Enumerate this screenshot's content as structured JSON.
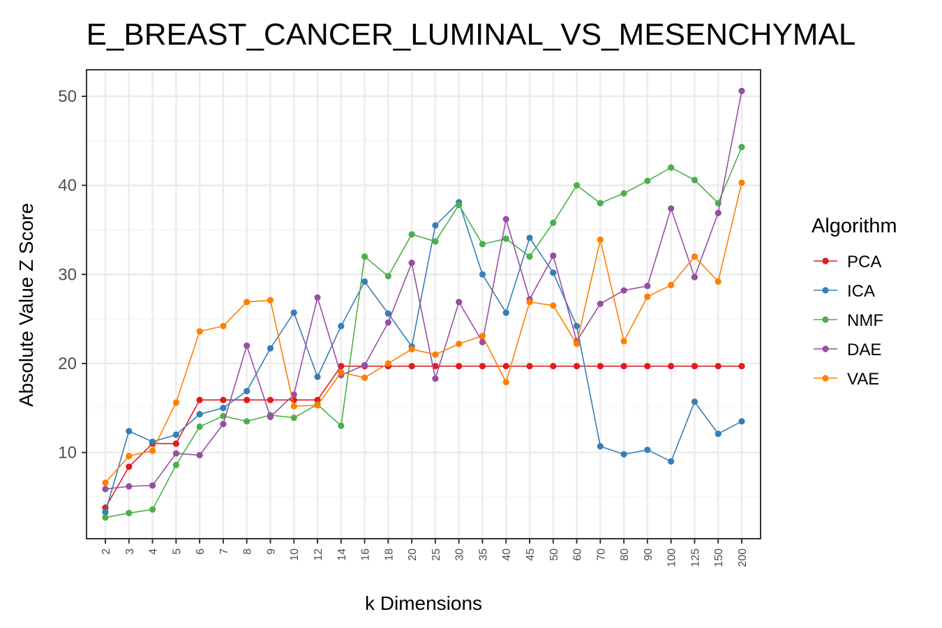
{
  "chart_data": {
    "type": "line",
    "title": "E_BREAST_CANCER_LUMINAL_VS_MESENCHYMAL",
    "xlabel": "k Dimensions",
    "ylabel": "Absolute Value Z Score",
    "categories": [
      "2",
      "3",
      "4",
      "5",
      "6",
      "7",
      "8",
      "9",
      "10",
      "12",
      "14",
      "16",
      "18",
      "20",
      "25",
      "30",
      "35",
      "40",
      "45",
      "50",
      "60",
      "70",
      "80",
      "90",
      "100",
      "125",
      "150",
      "200"
    ],
    "yticks": [
      10,
      20,
      30,
      40,
      50
    ],
    "ylim": [
      2.5,
      52.5
    ],
    "grid": true,
    "legend_title": "Algorithm",
    "legend_position": "right",
    "series": [
      {
        "name": "PCA",
        "color": "#e41a1c",
        "values": [
          3.8,
          8.4,
          11.0,
          11.0,
          15.9,
          15.9,
          15.9,
          15.9,
          15.9,
          15.9,
          19.7,
          19.7,
          19.7,
          19.7,
          19.7,
          19.7,
          19.7,
          19.7,
          19.7,
          19.7,
          19.7,
          19.7,
          19.7,
          19.7,
          19.7,
          19.7,
          19.7,
          19.7
        ]
      },
      {
        "name": "ICA",
        "color": "#377eb8",
        "values": [
          3.3,
          12.4,
          11.2,
          12.0,
          14.3,
          15.0,
          16.9,
          21.7,
          25.7,
          18.5,
          24.2,
          29.2,
          25.6,
          21.9,
          35.5,
          38.1,
          30.0,
          25.7,
          34.1,
          30.2,
          24.2,
          10.7,
          9.8,
          10.3,
          9.0,
          15.7,
          12.1,
          13.5
        ]
      },
      {
        "name": "NMF",
        "color": "#4daf4a",
        "values": [
          2.7,
          3.2,
          3.6,
          8.6,
          12.9,
          14.1,
          13.5,
          14.2,
          13.9,
          15.4,
          13.0,
          32.0,
          29.8,
          34.5,
          33.7,
          37.8,
          33.4,
          34.0,
          32.0,
          35.8,
          40.0,
          38.0,
          39.1,
          40.5,
          42.0,
          40.6,
          38.0,
          44.3
        ]
      },
      {
        "name": "DAE",
        "color": "#984ea3",
        "values": [
          5.9,
          6.2,
          6.3,
          9.9,
          9.7,
          13.2,
          22.0,
          14.0,
          16.5,
          27.4,
          18.7,
          19.8,
          24.6,
          31.3,
          18.3,
          26.9,
          22.4,
          36.2,
          27.2,
          32.1,
          22.5,
          26.7,
          28.2,
          28.7,
          37.4,
          29.7,
          36.9,
          50.6
        ]
      },
      {
        "name": "VAE",
        "color": "#ff7f00",
        "values": [
          6.6,
          9.6,
          10.2,
          15.6,
          23.6,
          24.2,
          26.9,
          27.1,
          15.2,
          15.3,
          19.0,
          18.4,
          20.0,
          21.6,
          21.0,
          22.2,
          23.1,
          17.9,
          26.9,
          26.5,
          22.2,
          33.9,
          22.5,
          27.5,
          28.8,
          32.0,
          29.2,
          40.3
        ]
      }
    ]
  }
}
